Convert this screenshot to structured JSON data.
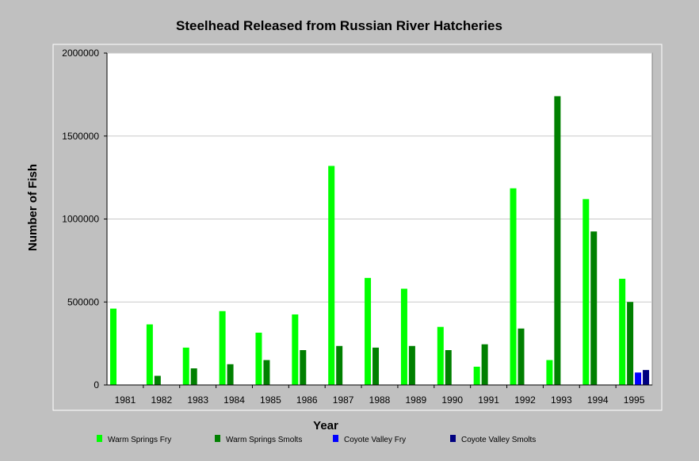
{
  "chart_data": {
    "type": "bar",
    "title": "Steelhead Released from Russian River Hatcheries",
    "xlabel": "Year",
    "ylabel": "Number of Fish",
    "ylim": [
      0,
      2000000
    ],
    "yticks": [
      "0",
      "500000",
      "1000000",
      "1500000",
      "2000000"
    ],
    "grid": true,
    "legend_position": "bottom",
    "categories": [
      "1981",
      "1982",
      "1983",
      "1984",
      "1985",
      "1986",
      "1987",
      "1988",
      "1989",
      "1990",
      "1991",
      "1992",
      "1993",
      "1994",
      "1995"
    ],
    "series": [
      {
        "name": "Warm Springs Fry",
        "color": "#00ff00",
        "values": [
          460000,
          365000,
          225000,
          445000,
          315000,
          425000,
          1320000,
          645000,
          580000,
          350000,
          110000,
          1185000,
          150000,
          1120000,
          640000
        ]
      },
      {
        "name": "Warm Springs Smolts",
        "color": "#008000",
        "values": [
          0,
          55000,
          100000,
          125000,
          150000,
          210000,
          235000,
          225000,
          235000,
          210000,
          245000,
          340000,
          1740000,
          925000,
          500000
        ]
      },
      {
        "name": "Coyote Valley Fry",
        "color": "#0000ff",
        "values": [
          0,
          0,
          0,
          0,
          0,
          0,
          0,
          0,
          0,
          0,
          0,
          0,
          0,
          0,
          75000
        ]
      },
      {
        "name": "Coyote Valley Smolts",
        "color": "#000080",
        "values": [
          0,
          0,
          0,
          0,
          0,
          0,
          0,
          0,
          0,
          0,
          0,
          0,
          0,
          0,
          90000
        ]
      }
    ]
  }
}
